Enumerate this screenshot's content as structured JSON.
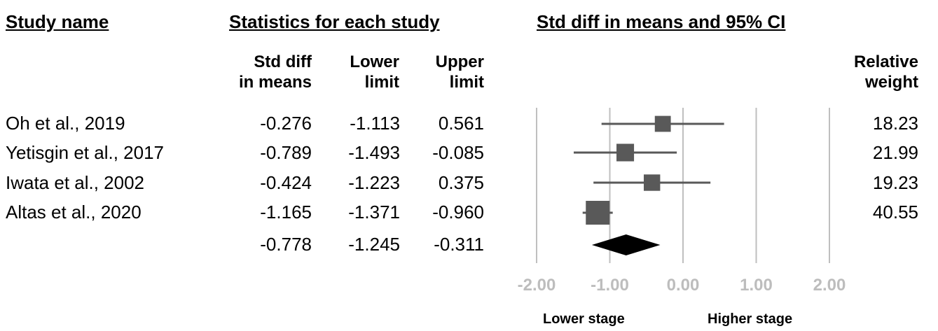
{
  "headers": {
    "study_name": "Study name",
    "statistics": "Statistics for each study",
    "ci": "Std diff in means and 95% CI"
  },
  "columns": {
    "std_diff_line1": "Std diff",
    "std_diff_line2": "in means",
    "lower_line1": "Lower",
    "lower_line2": "limit",
    "upper_line1": "Upper",
    "upper_line2": "limit",
    "weight_line1": "Relative",
    "weight_line2": "weight"
  },
  "rows": [
    {
      "study": "Oh et al., 2019",
      "std_diff": "-0.276",
      "lower": "-1.113",
      "upper": "0.561",
      "weight": "18.23"
    },
    {
      "study": "Yetisgin et al., 2017",
      "std_diff": "-0.789",
      "lower": "-1.493",
      "upper": "-0.085",
      "weight": "21.99"
    },
    {
      "study": "Iwata et al., 2002",
      "std_diff": "-0.424",
      "lower": "-1.223",
      "upper": "0.375",
      "weight": "19.23"
    },
    {
      "study": "Altas et al., 2020",
      "std_diff": "-1.165",
      "lower": "-1.371",
      "upper": "-0.960",
      "weight": "40.55"
    }
  ],
  "summary": {
    "std_diff": "-0.778",
    "lower": "-1.245",
    "upper": "-0.311"
  },
  "direction_labels": {
    "left": "Lower stage",
    "right": "Higher stage"
  },
  "colors": {
    "marker": "#595959",
    "line": "#595959",
    "grid": "#bfbfbf",
    "diamond": "#000000",
    "tick": "#bdbdbd"
  },
  "chart_data": {
    "type": "forest",
    "x_ticks": [
      "-2.00",
      "-1.00",
      "0.00",
      "1.00",
      "2.00"
    ],
    "xlim": [
      -2,
      2
    ],
    "grid": true,
    "studies": [
      {
        "name": "Oh et al., 2019",
        "estimate": -0.276,
        "lower": -1.113,
        "upper": 0.561,
        "weight": 18.23
      },
      {
        "name": "Yetisgin et al., 2017",
        "estimate": -0.789,
        "lower": -1.493,
        "upper": -0.085,
        "weight": 21.99
      },
      {
        "name": "Iwata et al., 2002",
        "estimate": -0.424,
        "lower": -1.223,
        "upper": 0.375,
        "weight": 19.23
      },
      {
        "name": "Altas et al., 2020",
        "estimate": -1.165,
        "lower": -1.371,
        "upper": -0.96,
        "weight": 40.55
      }
    ],
    "summary": {
      "estimate": -0.778,
      "lower": -1.245,
      "upper": -0.311
    }
  }
}
